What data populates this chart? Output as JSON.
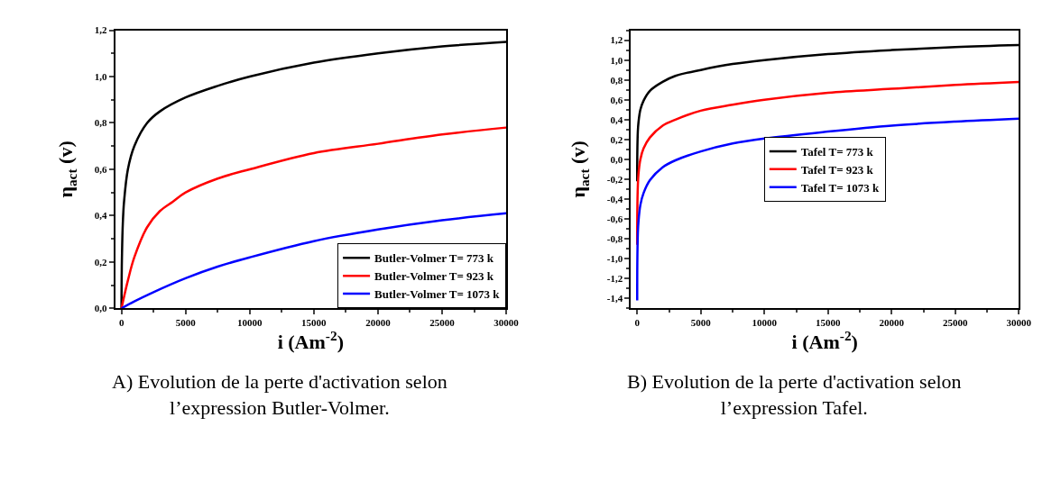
{
  "chart_data": [
    {
      "type": "line",
      "xlabel": "i (Am$^{-2}$)",
      "ylabel": "η$_{act}$ (v)",
      "legend": "bottom right",
      "marker": "none",
      "line_style": "solid",
      "annotations": [
        "A) Evolution de la perte d'activation selon l’expression Butler-Volmer."
      ],
      "xlim": [
        -500,
        30000
      ],
      "xticks": [
        0,
        5000,
        10000,
        15000,
        20000,
        25000,
        30000
      ],
      "ylim": [
        0,
        1.2
      ],
      "yticks": [
        {
          "value": 0,
          "label": "0,0"
        },
        {
          "value": 0.2,
          "label": "0,2"
        },
        {
          "value": 0.4,
          "label": "0,4"
        },
        {
          "value": 0.6,
          "label": "0,6"
        },
        {
          "value": 0.8,
          "label": "0,8"
        },
        {
          "value": 1.0,
          "label": "1,0"
        },
        {
          "value": 1.2,
          "label": "1,2"
        }
      ],
      "series": [
        {
          "name": "Butler-Volmer T= 773 k",
          "color": "#000000",
          "x": [
            0,
            30,
            100,
            200,
            500,
            1000,
            2000,
            3000,
            5000,
            7500,
            10000,
            15000,
            20000,
            25000,
            30000
          ],
          "values": [
            0,
            0.2,
            0.36,
            0.46,
            0.6,
            0.7,
            0.8,
            0.85,
            0.91,
            0.96,
            1.0,
            1.06,
            1.1,
            1.13,
            1.15
          ]
        },
        {
          "name": "Butler-Volmer T= 923 k",
          "color": "#ff0000",
          "x": [
            0,
            500,
            1000,
            2000,
            3000,
            4000,
            5000,
            7500,
            10000,
            15000,
            20000,
            25000,
            30000
          ],
          "values": [
            0,
            0.12,
            0.22,
            0.35,
            0.42,
            0.46,
            0.5,
            0.56,
            0.6,
            0.67,
            0.71,
            0.75,
            0.78
          ]
        },
        {
          "name": "Butler-Volmer T= 1073 k",
          "color": "#0000ff",
          "x": [
            0,
            1000,
            2500,
            5000,
            7500,
            10000,
            15000,
            20000,
            25000,
            30000
          ],
          "values": [
            0,
            0.03,
            0.07,
            0.13,
            0.18,
            0.22,
            0.29,
            0.34,
            0.38,
            0.41
          ]
        }
      ]
    },
    {
      "type": "line",
      "xlabel": "i (Am$^{-2}$)",
      "ylabel": "η$_{act}$ (v)",
      "legend": "center",
      "marker": "none",
      "line_style": "solid",
      "annotations": [
        "B) Evolution de la perte d'activation selon l’expression Tafel."
      ],
      "xlim": [
        -500,
        30000
      ],
      "xticks": [
        0,
        5000,
        10000,
        15000,
        20000,
        25000,
        30000
      ],
      "ylim": [
        -1.5,
        1.3
      ],
      "yticks": [
        {
          "value": -1.4,
          "label": "-1,4"
        },
        {
          "value": -1.2,
          "label": "-1,2"
        },
        {
          "value": -1.0,
          "label": "-1,0"
        },
        {
          "value": -0.8,
          "label": "-0,8"
        },
        {
          "value": -0.6,
          "label": "-0,6"
        },
        {
          "value": -0.4,
          "label": "-0,4"
        },
        {
          "value": -0.2,
          "label": "-0,2"
        },
        {
          "value": 0,
          "label": "0,0"
        },
        {
          "value": 0.2,
          "label": "0,2"
        },
        {
          "value": 0.4,
          "label": "0,4"
        },
        {
          "value": 0.6,
          "label": "0,6"
        },
        {
          "value": 0.8,
          "label": "0,8"
        },
        {
          "value": 1.0,
          "label": "1,0"
        },
        {
          "value": 1.2,
          "label": "1,2"
        }
      ],
      "series": [
        {
          "name": "Tafel T= 773 k",
          "color": "#000000",
          "x": [
            1.3,
            10,
            50,
            100,
            250,
            500,
            1000,
            2000,
            3000,
            5000,
            7500,
            10000,
            15000,
            20000,
            25000,
            30000
          ],
          "values": [
            -0.22,
            0.06,
            0.28,
            0.37,
            0.5,
            0.59,
            0.69,
            0.78,
            0.84,
            0.9,
            0.96,
            1.0,
            1.06,
            1.1,
            1.13,
            1.15
          ]
        },
        {
          "name": "Tafel T= 923 k",
          "color": "#ff0000",
          "x": [
            1.3,
            10,
            50,
            100,
            250,
            500,
            1000,
            2000,
            3000,
            5000,
            7500,
            10000,
            15000,
            20000,
            25000,
            30000
          ],
          "values": [
            -0.86,
            -0.53,
            -0.27,
            -0.15,
            0,
            0.11,
            0.22,
            0.34,
            0.4,
            0.49,
            0.55,
            0.6,
            0.67,
            0.71,
            0.75,
            0.78
          ]
        },
        {
          "name": "Tafel T= 1073 k",
          "color": "#0000ff",
          "x": [
            1.3,
            10,
            50,
            100,
            250,
            500,
            1000,
            2000,
            3000,
            5000,
            7500,
            10000,
            15000,
            20000,
            25000,
            30000
          ],
          "values": [
            -1.42,
            -1.05,
            -0.75,
            -0.63,
            -0.46,
            -0.34,
            -0.21,
            -0.08,
            -0.01,
            0.08,
            0.16,
            0.21,
            0.28,
            0.34,
            0.38,
            0.41
          ]
        }
      ]
    }
  ]
}
